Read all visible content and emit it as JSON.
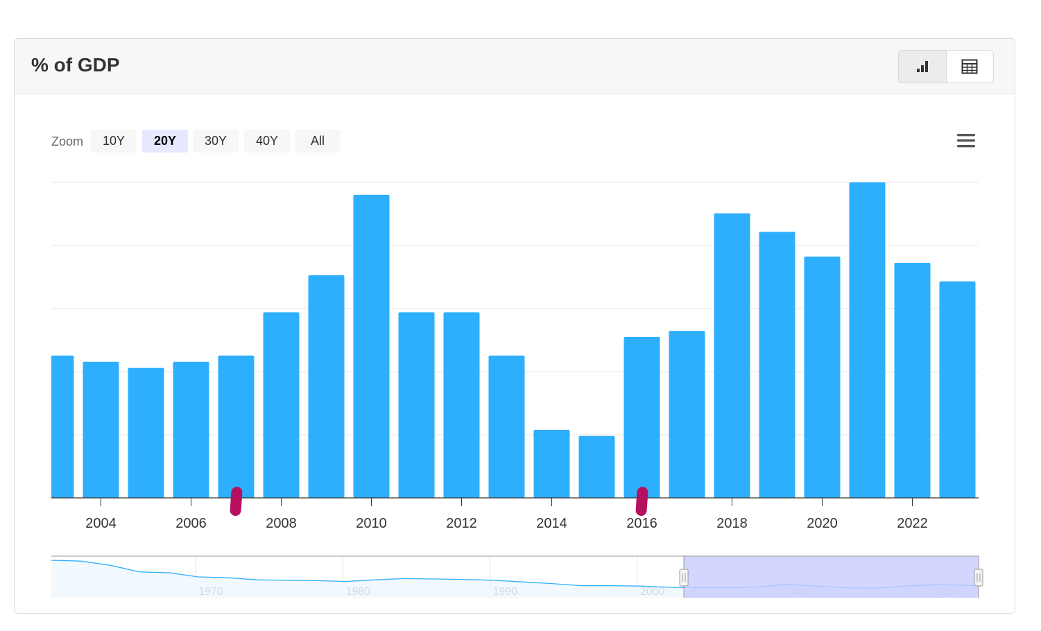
{
  "header": {
    "title": "% of GDP"
  },
  "view_toggle": {
    "chart_icon": "bar-chart-icon",
    "table_icon": "table-icon"
  },
  "zoom": {
    "label": "Zoom",
    "options": [
      "10Y",
      "20Y",
      "30Y",
      "40Y",
      "All"
    ],
    "selected": "20Y"
  },
  "menu_icon": "hamburger-menu-icon",
  "colors": {
    "bar": "#2eaffd",
    "navigator_selection": "#c8ccff",
    "marker": "#b5115f",
    "grid": "#e6e6e6"
  },
  "chart_data": {
    "type": "bar",
    "title": "% of GDP",
    "x": [
      2003,
      2004,
      2005,
      2006,
      2007,
      2008,
      2009,
      2010,
      2011,
      2012,
      2013,
      2014,
      2015,
      2016,
      2017,
      2018,
      2019,
      2020,
      2021,
      2022,
      2023
    ],
    "values": [
      2.3,
      2.2,
      2.1,
      2.2,
      2.3,
      3.0,
      3.6,
      4.9,
      3.0,
      3.0,
      2.3,
      1.1,
      1.0,
      2.6,
      2.7,
      4.6,
      4.3,
      3.9,
      5.1,
      3.8,
      3.5
    ],
    "xticks": [
      2004,
      2006,
      2008,
      2010,
      2012,
      2014,
      2016,
      2018,
      2020,
      2022
    ],
    "ylim": [
      0,
      5.1
    ],
    "yaxis_labels_shown": false,
    "grid": true,
    "event_markers": [
      2007,
      2016
    ],
    "navigator": {
      "range": [
        1960,
        2023
      ],
      "selected_range": [
        2003,
        2023
      ],
      "tick_labels": [
        "1970",
        "1980",
        "1990",
        "2000",
        "2010",
        "2020"
      ],
      "series": [
        [
          1960,
          9.0
        ],
        [
          1962,
          8.8
        ],
        [
          1964,
          7.8
        ],
        [
          1966,
          6.2
        ],
        [
          1968,
          6.0
        ],
        [
          1970,
          5.0
        ],
        [
          1972,
          4.8
        ],
        [
          1974,
          4.3
        ],
        [
          1976,
          4.2
        ],
        [
          1978,
          4.1
        ],
        [
          1980,
          3.9
        ],
        [
          1982,
          4.3
        ],
        [
          1984,
          4.6
        ],
        [
          1986,
          4.5
        ],
        [
          1988,
          4.4
        ],
        [
          1990,
          4.2
        ],
        [
          1992,
          3.8
        ],
        [
          1994,
          3.4
        ],
        [
          1996,
          2.9
        ],
        [
          1998,
          2.9
        ],
        [
          2000,
          2.8
        ],
        [
          2002,
          2.5
        ],
        [
          2004,
          2.4
        ],
        [
          2006,
          2.4
        ],
        [
          2008,
          2.6
        ],
        [
          2010,
          3.2
        ],
        [
          2012,
          2.8
        ],
        [
          2014,
          2.4
        ],
        [
          2016,
          2.3
        ],
        [
          2018,
          2.8
        ],
        [
          2020,
          3.1
        ],
        [
          2022,
          3.0
        ],
        [
          2023,
          2.9
        ]
      ]
    }
  }
}
